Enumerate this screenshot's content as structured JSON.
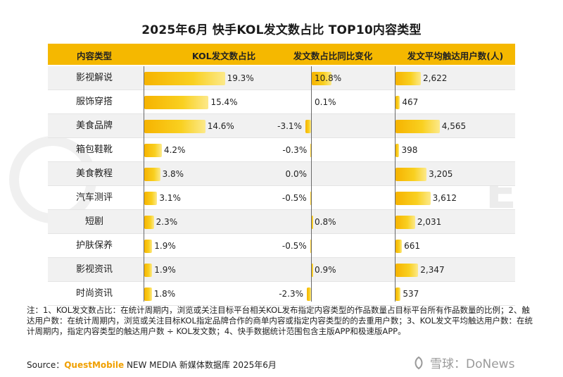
{
  "title": "2025年6月 快手KOL发文数占比 TOP10内容类型",
  "headers": [
    "内容类型",
    "KOL发文数占比",
    "发文数占比同比变化",
    "发文平均触达用户数(人)"
  ],
  "chart_data": {
    "type": "bar",
    "title": "2025年6月 快手KOL发文数占比 TOP10内容类型",
    "categories": [
      "影视解说",
      "服饰穿搭",
      "美食品牌",
      "箱包鞋靴",
      "美食教程",
      "汽车测评",
      "短剧",
      "护肤保养",
      "影视资讯",
      "时尚资讯"
    ],
    "series": [
      {
        "name": "KOL发文数占比",
        "unit": "%",
        "values": [
          19.3,
          15.4,
          14.6,
          4.2,
          3.8,
          3.1,
          2.3,
          1.9,
          1.9,
          1.8
        ],
        "labels": [
          "19.3%",
          "15.4%",
          "14.6%",
          "4.2%",
          "3.8%",
          "3.1%",
          "2.3%",
          "1.9%",
          "1.9%",
          "1.8%"
        ],
        "xlim": [
          0,
          32
        ]
      },
      {
        "name": "发文数占比同比变化",
        "unit": "%",
        "values": [
          10.8,
          0.1,
          -3.1,
          -0.3,
          0.0,
          -0.5,
          0.8,
          -0.5,
          0.9,
          -2.3
        ],
        "labels": [
          "10.8%",
          "0.1%",
          "-3.1%",
          "-0.3%",
          "0.0%",
          "-0.5%",
          "0.8%",
          "-0.5%",
          "0.9%",
          "-2.3%"
        ],
        "xlim": [
          -8,
          26
        ]
      },
      {
        "name": "发文平均触达用户数(人)",
        "unit": "人",
        "values": [
          2622,
          467,
          4565,
          398,
          3205,
          3612,
          2031,
          661,
          2347,
          537
        ],
        "labels": [
          "2,622",
          "467",
          "4,565",
          "398",
          "3,205",
          "3,612",
          "2,031",
          "661",
          "2,347",
          "537"
        ],
        "xlim": [
          0,
          12000
        ]
      }
    ]
  },
  "notes": "注：1、KOL发文数占比：在统计周期内，浏览或关注目标平台相关KOL发布指定内容类型的作品数量占目标平台所有作品数量的比例；2、触达用户数：在统计周期内，浏览或关注目标KOL指定品牌合作的商单内容或指定内容类型的的去重用户数；3、KOL发文平均触达用户数：在统计周期内，指定内容类型的触达用户数 ÷ KOL发文数；4、快手数据统计范围包含主版APP和极速版APP。",
  "source": {
    "prefix": "Source：",
    "brand": "QuestMobile",
    "suffix": " NEW MEDIA 新媒体数据库 2025年6月"
  },
  "watermark": "雪球：DoNews",
  "colors": {
    "header": "#f5b800",
    "bar": "#f6b300",
    "stripe": "#f1f1f1"
  }
}
